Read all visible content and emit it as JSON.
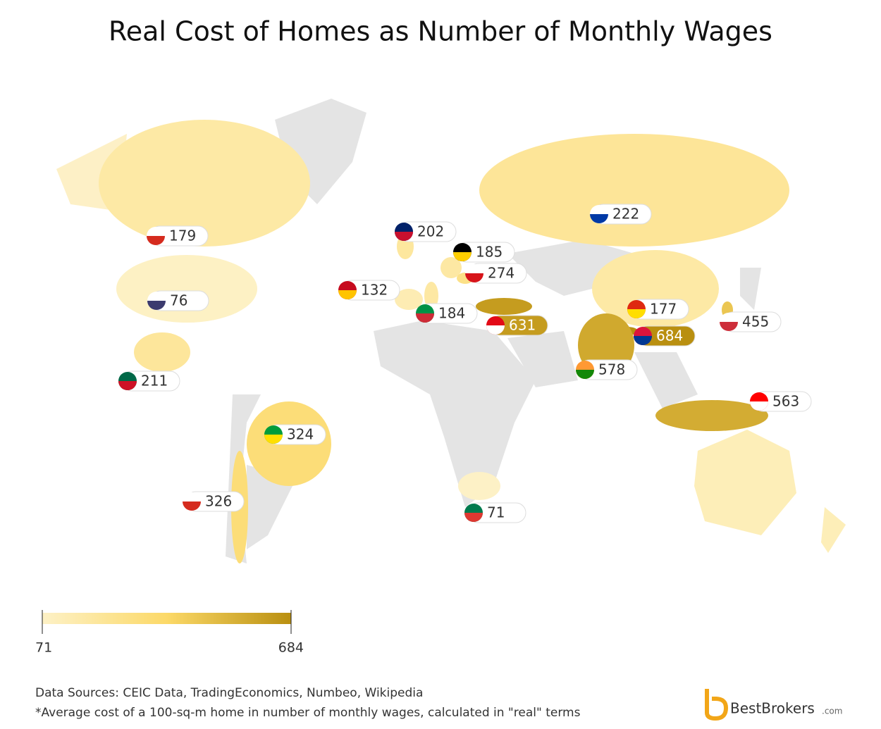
{
  "header": {
    "title": "Real Cost of Homes as Number of Monthly Wages"
  },
  "map": {
    "values": [
      179,
      76,
      211,
      324,
      326,
      202,
      185,
      274,
      132,
      184,
      631,
      222,
      177,
      684,
      455,
      578,
      563,
      71
    ],
    "scale": {
      "min": 71,
      "max": 684,
      "colors": [
        "#fdf1c6",
        "#fcd968",
        "#b98f10"
      ]
    }
  },
  "footer": {
    "sources": "Data Sources: CEIC Data, TradingEconomics, Numbeo, Wikipedia",
    "note": "*Average cost of a 100-sq-m home in number of monthly wages, calculated in \"real\" terms",
    "logo": "BestBrokers",
    "logo_suffix": ".com"
  }
}
